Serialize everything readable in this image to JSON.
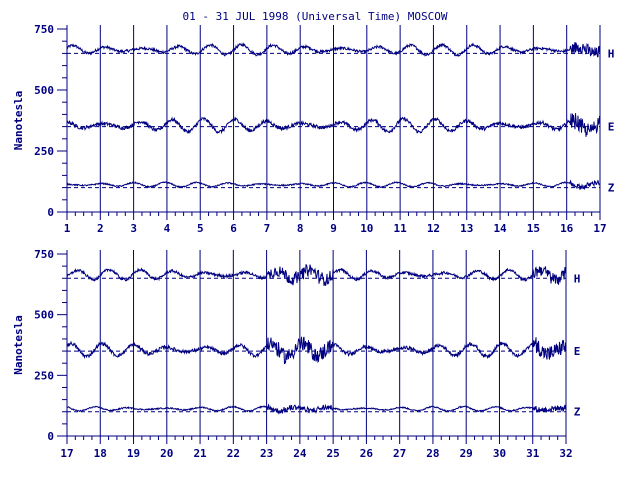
{
  "title": "01 - 31 JUL 1998 (Universal Time) MOSCOW",
  "colors": {
    "ink": "#000080",
    "background": "#ffffff"
  },
  "chart_data": [
    {
      "type": "line",
      "panel": "top",
      "ylabel": "Nanotesla",
      "ylim": [
        0,
        750
      ],
      "yticks": [
        0,
        250,
        500,
        750
      ],
      "xlim": [
        1,
        17
      ],
      "xticks": [
        "1",
        "2",
        "3",
        "4",
        "5",
        "6",
        "7",
        "8",
        "9",
        "10",
        "11",
        "12",
        "13",
        "14",
        "15",
        "16",
        "17"
      ],
      "series": [
        {
          "name": "H",
          "baseline": 650
        },
        {
          "name": "E",
          "baseline": 350
        },
        {
          "name": "Z",
          "baseline": 100
        }
      ],
      "grid": "vertical day lines"
    },
    {
      "type": "line",
      "panel": "bottom",
      "ylabel": "Nanotesla",
      "ylim": [
        0,
        750
      ],
      "yticks": [
        0,
        250,
        500,
        750
      ],
      "xlim": [
        17,
        32
      ],
      "xticks": [
        "17",
        "18",
        "19",
        "20",
        "21",
        "22",
        "23",
        "24",
        "25",
        "26",
        "27",
        "28",
        "29",
        "30",
        "31",
        "32"
      ],
      "series": [
        {
          "name": "H",
          "baseline": 650
        },
        {
          "name": "E",
          "baseline": 350
        },
        {
          "name": "Z",
          "baseline": 100
        }
      ],
      "grid": "vertical day lines"
    }
  ]
}
